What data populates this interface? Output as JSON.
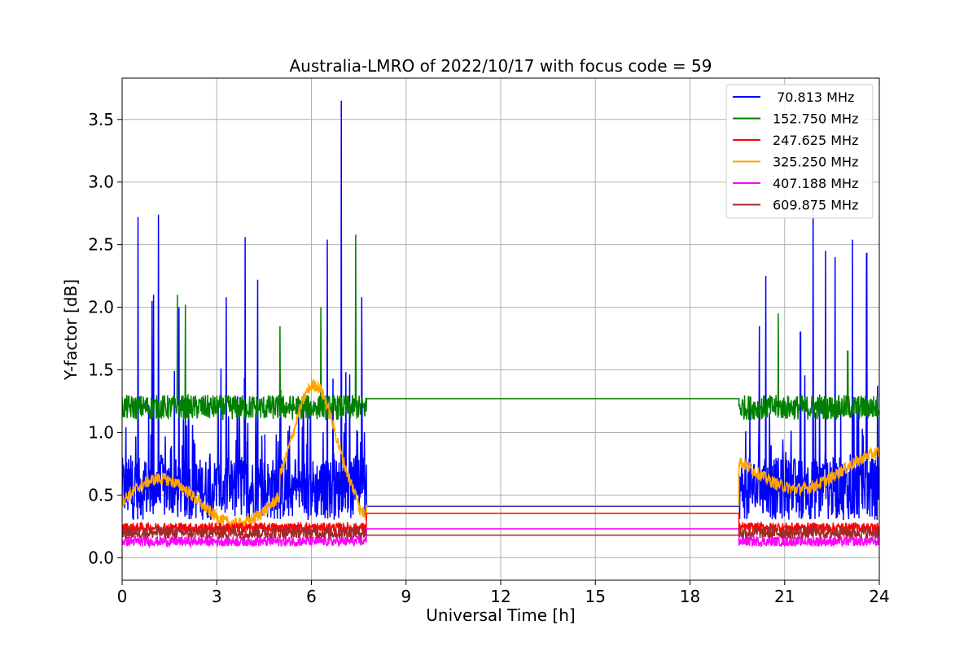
{
  "chart_data": {
    "type": "line",
    "title": "Australia-LMRO of 2022/10/17 with focus code = 59",
    "xlabel": "Universal Time [h]",
    "ylabel": "Y-factor [dB]",
    "xlim": [
      0,
      24
    ],
    "ylim": [
      -0.18,
      3.83
    ],
    "xticks": [
      0,
      3,
      6,
      9,
      12,
      15,
      18,
      21,
      24
    ],
    "xtick_labels": [
      "0",
      "3",
      "6",
      "9",
      "12",
      "15",
      "18",
      "21",
      "24"
    ],
    "yticks": [
      0.0,
      0.5,
      1.0,
      1.5,
      2.0,
      2.5,
      3.0,
      3.5
    ],
    "ytick_labels": [
      "0.0",
      "0.5",
      "1.0",
      "1.5",
      "2.0",
      "2.5",
      "3.0",
      "3.5"
    ],
    "grid": true,
    "legend_position": "top-right",
    "gap_interval": [
      7.75,
      19.55
    ],
    "series": [
      {
        "name": " 70.813 MHz",
        "color": "#0000ff",
        "base": 0.55,
        "noise": 0.25,
        "gap_level": 0.41,
        "spikes": [
          [
            0.5,
            2.72
          ],
          [
            1.15,
            2.74
          ],
          [
            0.95,
            2.05
          ],
          [
            1.0,
            2.1
          ],
          [
            1.8,
            2.0
          ],
          [
            3.3,
            2.08
          ],
          [
            3.9,
            2.56
          ],
          [
            4.3,
            2.22
          ],
          [
            6.5,
            2.54
          ],
          [
            6.95,
            3.65
          ],
          [
            7.6,
            2.08
          ],
          [
            20.4,
            2.25
          ],
          [
            21.9,
            2.78
          ],
          [
            22.3,
            2.45
          ],
          [
            22.6,
            2.4
          ],
          [
            23.15,
            2.54
          ],
          [
            23.6,
            2.43
          ],
          [
            20.2,
            1.85
          ],
          [
            21.5,
            1.8
          ]
        ]
      },
      {
        "name": "152.750 MHz",
        "color": "#008000",
        "base": 1.2,
        "noise": 0.1,
        "gap_level": 1.27,
        "spikes": [
          [
            1.75,
            2.1
          ],
          [
            2.0,
            2.02
          ],
          [
            7.4,
            2.58
          ],
          [
            6.3,
            2.0
          ],
          [
            5.0,
            1.85
          ],
          [
            20.8,
            1.95
          ],
          [
            23.0,
            1.65
          ]
        ]
      },
      {
        "name": "247.625 MHz",
        "color": "#ff0000",
        "base": 0.24,
        "noise": 0.04,
        "gap_level": 0.355,
        "spikes": []
      },
      {
        "name": "325.250 MHz",
        "color": "#ffa500",
        "base": 0.45,
        "noise": 0.05,
        "gap_level": 0.415,
        "spikes": []
      },
      {
        "name": "407.188 MHz",
        "color": "#ff00ff",
        "base": 0.13,
        "noise": 0.04,
        "gap_level": 0.23,
        "spikes": []
      },
      {
        "name": "609.875 MHz",
        "color": "#a52a2a",
        "base": 0.2,
        "noise": 0.05,
        "gap_level": 0.18,
        "spikes": []
      }
    ]
  }
}
